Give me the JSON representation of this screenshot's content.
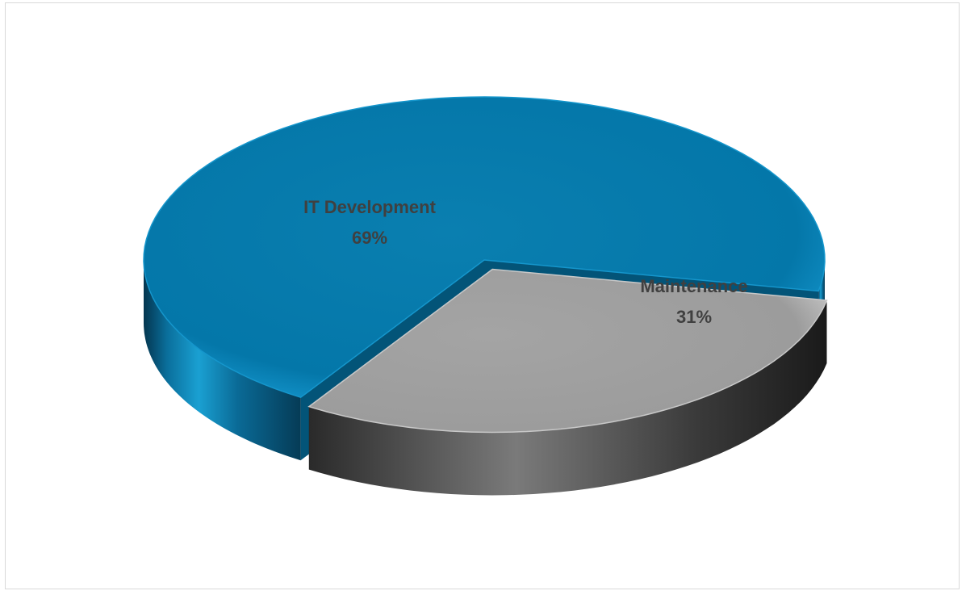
{
  "chart_data": {
    "type": "pie",
    "style": "3d-exploded",
    "slices": [
      {
        "label": "IT Development",
        "value": 69,
        "percent_label": "69%",
        "color": "#0078A8"
      },
      {
        "label": "Maintenance",
        "value": 31,
        "percent_label": "31%",
        "color": "#A6A6A6"
      }
    ],
    "legend": "none",
    "data_labels": "category-and-percent"
  }
}
